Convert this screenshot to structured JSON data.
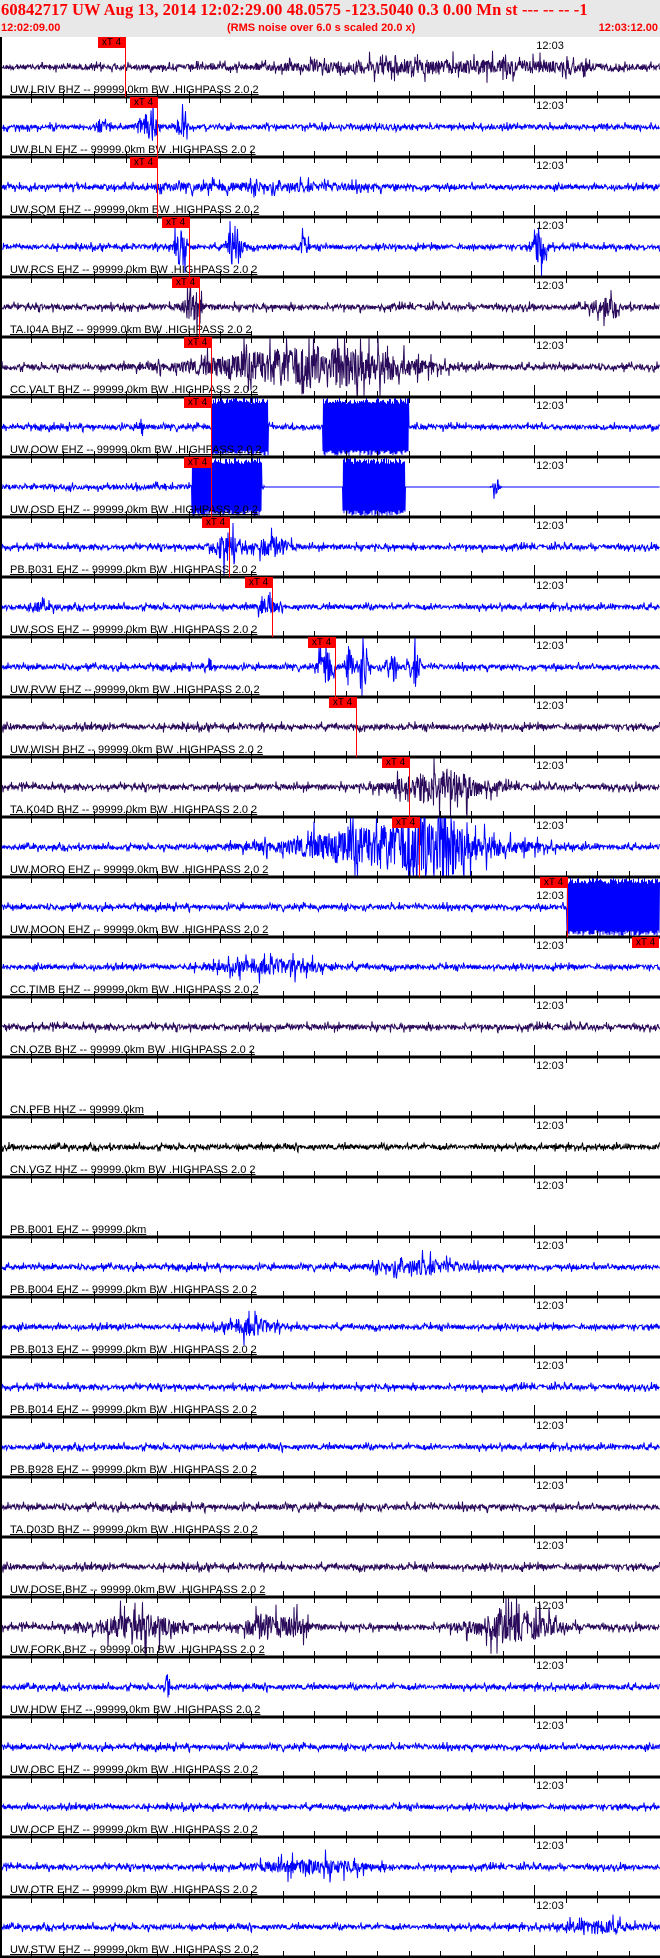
{
  "header": {
    "title": "60842717 UW Aug 13, 2014 12:02:29.00   48.0575 -123.5040  0.3 0.00 Mn st --- -- --  -1",
    "start_time": "12:02:09.00",
    "subtitle": "(RMS noise over 6.0 s scaled 20.0 x)",
    "end_time": "12:03:12.00"
  },
  "colors": {
    "header_text": "#ff0000",
    "header_bg": "#e8e8e8",
    "pick": "#ff0000",
    "purple": "#2a0a5a",
    "blue": "#0000ff",
    "black": "#000000"
  },
  "time_axis": {
    "span_seconds": 63,
    "minute_mark_label": "12:03",
    "minute_mark_second": 51,
    "tick_interval_seconds": 3
  },
  "pick_label": "xT 4",
  "panels": [
    {
      "label": "UW.LRIV BHZ -- 99999.0km BW .HIGHPASS  2.0  2",
      "color": "purple",
      "picks": [
        11.9
      ],
      "events": [
        [
          37,
          6,
          10
        ],
        [
          50,
          5,
          8
        ]
      ]
    },
    {
      "label": "UW.BLN EHZ -- 99999.0km BW .HIGHPASS  2.0  2",
      "color": "blue",
      "picks": [
        15.0
      ],
      "events": [
        [
          14.1,
          26,
          0.8
        ],
        [
          17.4,
          15,
          0.5
        ],
        [
          9.5,
          6,
          0.6
        ]
      ]
    },
    {
      "label": "UW.SQM EHZ -- 99999.0km BW .HIGHPASS  2.0  2",
      "color": "blue",
      "picks": [
        15.0
      ],
      "events": [
        [
          25,
          4,
          10
        ]
      ]
    },
    {
      "label": "UW.RCS EHZ -- 99999.0km BW .HIGHPASS  2.0  2",
      "color": "blue",
      "picks": [
        18.0
      ],
      "events": [
        [
          17.3,
          25,
          0.6
        ],
        [
          22.4,
          32,
          0.6
        ],
        [
          29,
          12,
          0.4
        ],
        [
          51.5,
          26,
          0.6
        ]
      ]
    },
    {
      "label": "TA.I04A BHZ -- 99999.0km BW .HIGHPASS  2.0  2",
      "color": "purple",
      "picks": [
        19.0
      ],
      "events": [
        [
          18.4,
          22,
          0.8
        ],
        [
          57.7,
          10,
          1.2
        ]
      ]
    },
    {
      "label": "CC.VALT BHZ -- 99999.0km BW .HIGHPASS  2.0  2",
      "color": "purple",
      "picks": [
        20.1
      ],
      "events": [
        [
          27,
          20,
          8
        ],
        [
          34,
          16,
          6
        ]
      ]
    },
    {
      "label": "UW.OOW EHZ -- 99999.0km BW .HIGHPASS  2.0  2",
      "color": "blue",
      "picks": [
        20.1
      ],
      "events": [
        [
          13.5,
          14,
          0.2
        ]
      ],
      "clipped": [
        [
          20.2,
          25.6
        ],
        [
          30.8,
          39.0
        ]
      ]
    },
    {
      "label": "UW.OSD EHZ -- 99999.0km BW .HIGHPASS  2.0  2",
      "color": "blue",
      "picks": [
        20.1
      ],
      "events": [
        [
          47.3,
          14,
          0.3
        ]
      ],
      "clipped": [
        [
          18.3,
          25.0
        ],
        [
          32.7,
          38.7
        ]
      ],
      "quiet_after": 25.2
    },
    {
      "label": "PB.B031 EHZ -- 99999.0km BW .HIGHPASS  2.0  2",
      "color": "blue",
      "picks": [
        21.9
      ],
      "events": [
        [
          21.6,
          18,
          1.2
        ],
        [
          26,
          13,
          1.5
        ]
      ]
    },
    {
      "label": "UW.SOS EHZ -- 99999.0km BW .HIGHPASS  2.0  2",
      "color": "blue",
      "picks": [
        26.0
      ],
      "events": [
        [
          25.5,
          10,
          0.8
        ],
        [
          3.5,
          4,
          1.5
        ]
      ]
    },
    {
      "label": "UW.RVW EHZ -- 99999.0km BW .HIGHPASS  2.0  2",
      "color": "blue",
      "picks": [
        32.0
      ],
      "events": [
        [
          31.1,
          30,
          0.6
        ],
        [
          33.3,
          30,
          0.4
        ],
        [
          34.8,
          30,
          0.4
        ],
        [
          37.4,
          28,
          0.4
        ],
        [
          39.6,
          22,
          0.5
        ],
        [
          20,
          12,
          0.2
        ]
      ]
    },
    {
      "label": "UW.WISH BHZ -- 99999.0km BW .HIGHPASS  2.0  2",
      "color": "purple",
      "picks": [
        34.0
      ],
      "events": []
    },
    {
      "label": "TA.K04D BHZ -- 99999.0km BW .HIGHPASS  2.0  2",
      "color": "purple",
      "picks": [
        39.0
      ],
      "events": [
        [
          42,
          22,
          4
        ]
      ]
    },
    {
      "label": "UW.MORO EHZ -- 99999.0km BW .HIGHPASS  2.0  2",
      "color": "blue",
      "picks": [
        40.0
      ],
      "events": [
        [
          38,
          30,
          9
        ],
        [
          41.5,
          40,
          2
        ]
      ]
    },
    {
      "label": "UW.MOON EHZ -- 99999.0km BW .HIGHPASS  2.0  2",
      "color": "blue",
      "picks": [
        54.1,
        62.9
      ],
      "events": [],
      "clipped": [
        [
          54.1,
          63
        ]
      ]
    },
    {
      "label": "CC.TIMB EHZ -- 99999.0km BW .HIGHPASS  2.0  2",
      "color": "blue",
      "picks": [],
      "events": [
        [
          26,
          8,
          5
        ]
      ]
    },
    {
      "label": "CN.OZB BHZ -- 99999.0km BW .HIGHPASS  2.0  2",
      "color": "purple",
      "picks": [],
      "events": []
    },
    {
      "label": "CN.PFB HHZ -- 99999.0km",
      "color": "blue",
      "picks": [],
      "events": [],
      "empty": true
    },
    {
      "label": "CN.VGZ HHZ -- 99999.0km BW .HIGHPASS  2.0  2",
      "color": "black",
      "picks": [],
      "events": []
    },
    {
      "label": "PB.B001 EHZ -- 99999.0km",
      "color": "blue",
      "picks": [],
      "events": [],
      "empty": true
    },
    {
      "label": "PB.B004 EHZ -- 99999.0km BW .HIGHPASS  2.0  2",
      "color": "blue",
      "picks": [],
      "events": [
        [
          40,
          8,
          4
        ]
      ]
    },
    {
      "label": "PB.B013 EHZ -- 99999.0km BW .HIGHPASS  2.0  2",
      "color": "blue",
      "picks": [],
      "events": [
        [
          24,
          10,
          2
        ]
      ]
    },
    {
      "label": "PB.B014 EHZ -- 99999.0km BW .HIGHPASS  2.0  2",
      "color": "blue",
      "picks": [],
      "events": []
    },
    {
      "label": "PB.B928 EHZ -- 99999.0km BW .HIGHPASS  2.0  2",
      "color": "blue",
      "picks": [],
      "events": []
    },
    {
      "label": "TA.D03D BHZ -- 99999.0km BW .HIGHPASS  2.0  2",
      "color": "purple",
      "picks": [],
      "events": []
    },
    {
      "label": "UW.DOSE BHZ -- 99999.0km BW .HIGHPASS  2.0  2",
      "color": "purple",
      "picks": [],
      "events": []
    },
    {
      "label": "UW.FORK BHZ -- 99999.0km BW .HIGHPASS  2.0  2",
      "color": "purple",
      "picks": [],
      "events": [
        [
          13,
          16,
          4
        ],
        [
          25,
          16,
          1.5
        ],
        [
          28,
          12,
          1.5
        ],
        [
          49,
          18,
          4
        ]
      ]
    },
    {
      "label": "UW.HDW EHZ -- 99999.0km BW .HIGHPASS  2.0  2",
      "color": "blue",
      "picks": [],
      "events": [
        [
          16,
          26,
          0.15
        ]
      ]
    },
    {
      "label": "UW.OBC EHZ -- 99999.0km BW .HIGHPASS  2.0  2",
      "color": "blue",
      "picks": [],
      "events": []
    },
    {
      "label": "UW.OCP EHZ -- 99999.0km BW .HIGHPASS  2.0  2",
      "color": "blue",
      "picks": [],
      "events": []
    },
    {
      "label": "UW.OTR EHZ -- 99999.0km BW .HIGHPASS  2.0  2",
      "color": "blue",
      "picks": [],
      "events": [
        [
          30,
          8,
          5
        ]
      ]
    },
    {
      "label": "UW.STW EHZ -- 99999.0km BW .HIGHPASS  2.0  2",
      "color": "blue",
      "picks": [],
      "events": [
        [
          57,
          7,
          3
        ]
      ]
    }
  ]
}
